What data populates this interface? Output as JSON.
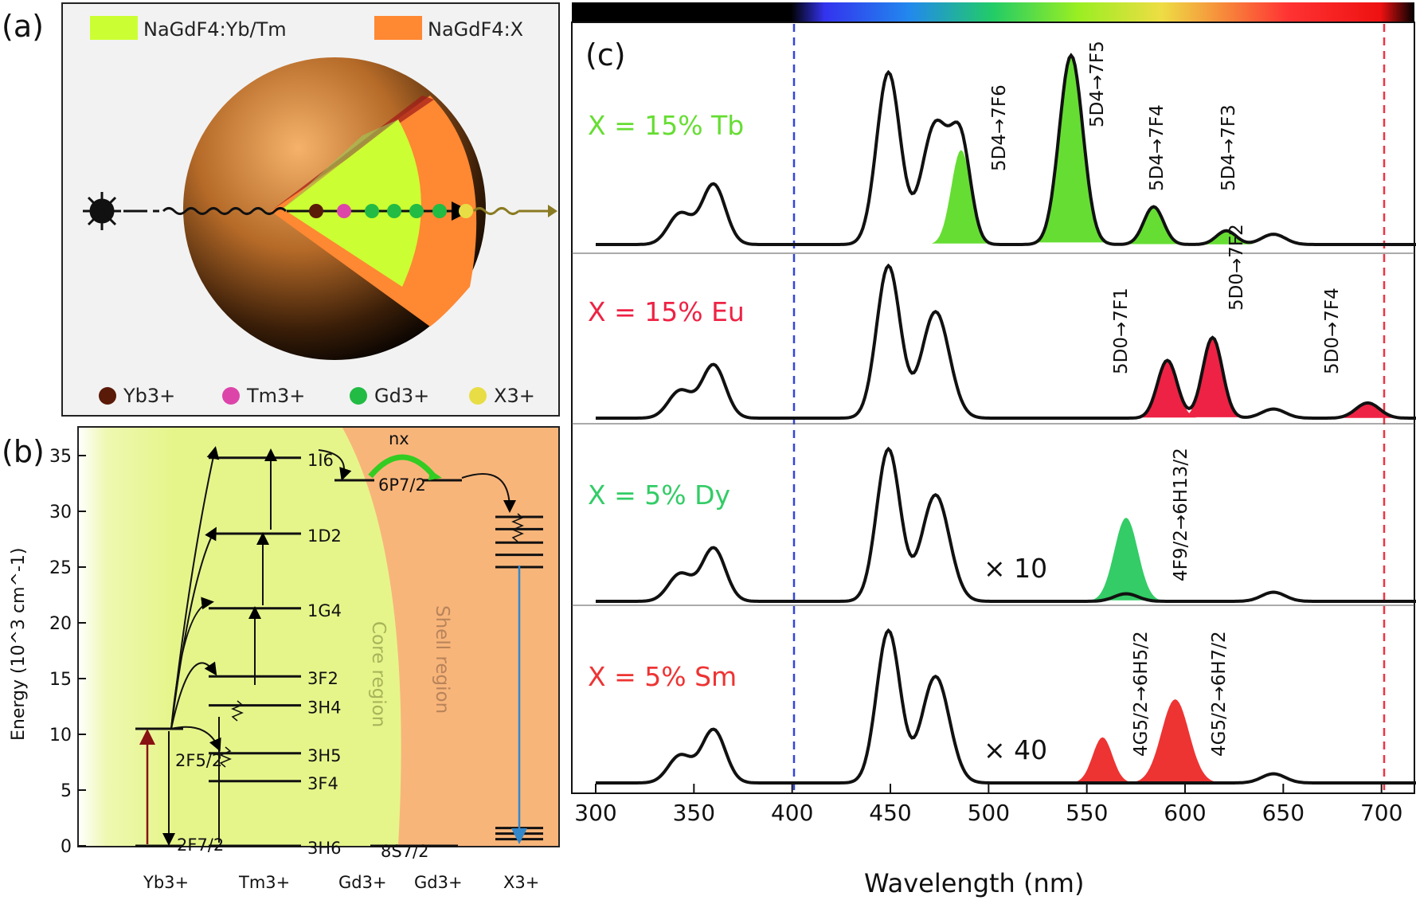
{
  "panels": {
    "a": "(a)",
    "b": "(b)",
    "c": "(c)"
  },
  "panel_a": {
    "legend_core": "NaGdF4:Yb/Tm",
    "legend_shell": "NaGdF4:X",
    "ions": [
      "Yb3+",
      "Tm3+",
      "Gd3+",
      "X3+"
    ],
    "colors": {
      "core": "#ccff33",
      "shell": "#ff8833",
      "yb": "#5a1a08",
      "tm": "#dd44aa",
      "gd": "#22bb44",
      "x": "#e8dd44"
    }
  },
  "panel_b": {
    "ylabel": "Energy (10^3 cm^-1)",
    "yticks": [
      "0",
      "5",
      "10",
      "15",
      "20",
      "25",
      "30",
      "35"
    ],
    "columns": [
      "Yb3+",
      "Tm3+",
      "Gd3+",
      "Gd3+",
      "X3+"
    ],
    "core_region": "Core region",
    "shell_region": "Shell region",
    "nx": "nx",
    "levels": {
      "tm": [
        "1I6",
        "1D2",
        "1G4",
        "3F2",
        "3H4",
        "3H5",
        "3F4",
        "3H6"
      ],
      "yb": [
        "2F5/2",
        "2F7/2"
      ],
      "gd": [
        "6P7/2",
        "8S7/2"
      ]
    }
  },
  "panel_c": {
    "xlabel": "Wavelength (nm)",
    "xticks": [
      "300",
      "350",
      "400",
      "450",
      "500",
      "550",
      "600",
      "650",
      "700"
    ],
    "spectra": [
      {
        "label": "X = 15% Tb",
        "color": "#66dd33",
        "transitions": [
          "5D4→7F6",
          "5D4→7F5",
          "5D4→7F4",
          "5D4→7F3"
        ],
        "multiplier": ""
      },
      {
        "label": "X = 15% Eu",
        "color": "#ee2244",
        "transitions": [
          "5D0→7F1",
          "5D0→7F2",
          "5D0→7F4"
        ],
        "multiplier": ""
      },
      {
        "label": "X = 5% Dy",
        "color": "#33cc66",
        "transitions": [
          "4F9/2→6H13/2"
        ],
        "multiplier": "× 10"
      },
      {
        "label": "X = 5% Sm",
        "color": "#ee3333",
        "transitions": [
          "4G5/2→6H5/2",
          "4G5/2→6H7/2"
        ],
        "multiplier": "× 40"
      }
    ]
  }
}
